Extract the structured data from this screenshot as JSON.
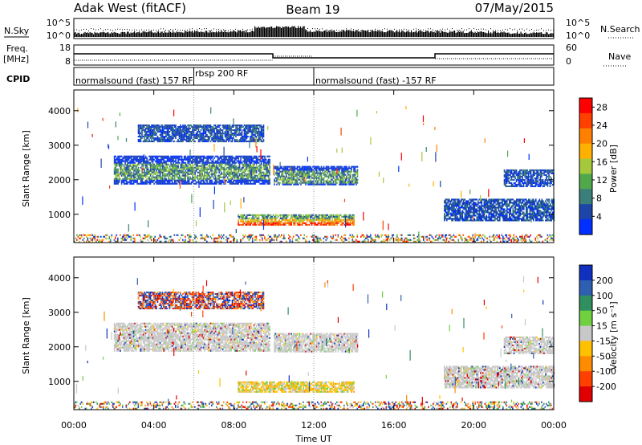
{
  "header": {
    "site": "Adak West (fitACF)",
    "beam": "Beam 19",
    "date": "07/May/2015"
  },
  "top_panels": {
    "nsky": {
      "label": "N.Sky",
      "left_ticks": [
        "10^5",
        "10^0"
      ],
      "right_ticks": [
        "10^5",
        "10^0"
      ],
      "right_label": "N.Search"
    },
    "freq": {
      "label_line1": "Freq.",
      "label_line2": "[MHz]",
      "left_ticks": [
        "18",
        "8"
      ],
      "right_ticks": [
        "60",
        "0"
      ],
      "right_label": "Nave"
    },
    "cpid": {
      "label": "CPID",
      "segments": [
        {
          "text": "normalsound (fast) 157 RF",
          "start_hour": 0
        },
        {
          "text": "rbsp 200 RF",
          "start_hour": 6
        },
        {
          "text": "normalsound (fast) -157 RF",
          "start_hour": 12
        }
      ],
      "boundaries_hour": [
        6,
        12
      ]
    }
  },
  "chart_data": [
    {
      "type": "heatmap",
      "name": "power",
      "ylabel": "Slant Range [km]",
      "xlabel": "",
      "xlim": [
        0,
        24
      ],
      "ylim": [
        180,
        4600
      ],
      "yticks": [
        1000,
        2000,
        3000,
        4000
      ],
      "colorbar": {
        "label": "Power [dB]",
        "ticks": [
          4,
          8,
          12,
          16,
          20,
          24,
          28
        ],
        "range": [
          0,
          30
        ],
        "colors": [
          "#0030ff",
          "#1d45a8",
          "#3a7f7a",
          "#50a84a",
          "#a5c83c",
          "#ffb000",
          "#ff8000",
          "#ff4000",
          "#ff0000"
        ]
      },
      "scatter_bands": [
        {
          "t0": 2.0,
          "t1": 9.8,
          "r0": 1900,
          "r1": 2700,
          "level": "mid"
        },
        {
          "t0": 3.2,
          "t1": 9.5,
          "r0": 3100,
          "r1": 3600,
          "level": "low"
        },
        {
          "t0": 8.2,
          "t1": 14.0,
          "r0": 680,
          "r1": 1000,
          "level": "high"
        },
        {
          "t0": 10.0,
          "t1": 14.2,
          "r0": 1850,
          "r1": 2400,
          "level": "mid"
        },
        {
          "t0": 18.5,
          "t1": 24.0,
          "r0": 800,
          "r1": 1450,
          "level": "low"
        },
        {
          "t0": 21.5,
          "t1": 24.0,
          "r0": 1800,
          "r1": 2300,
          "level": "low"
        },
        {
          "t0": 0.0,
          "t1": 24.0,
          "r0": 200,
          "r1": 420,
          "level": "noise"
        }
      ]
    },
    {
      "type": "heatmap",
      "name": "velocity",
      "ylabel": "Slant Range [km]",
      "xlabel": "Time UT",
      "xlim": [
        0,
        24
      ],
      "ylim": [
        180,
        4600
      ],
      "yticks": [
        1000,
        2000,
        3000,
        4000
      ],
      "xticks": [
        "00:00",
        "04:00",
        "08:00",
        "12:00",
        "16:00",
        "20:00",
        "00:00"
      ],
      "colorbar": {
        "label": "Velocity [m s⁻¹]",
        "ticks": [
          200,
          100,
          50,
          15,
          -15,
          -50,
          -100,
          -200
        ],
        "colors": [
          "#1030c0",
          "#2f5fb0",
          "#2f8f5f",
          "#70d040",
          "#c8c8c8",
          "#ffc000",
          "#ff8c00",
          "#ff4000",
          "#e00000"
        ]
      },
      "scatter_bands": [
        {
          "t0": 2.0,
          "t1": 9.8,
          "r0": 1900,
          "r1": 2700,
          "level": "gray"
        },
        {
          "t0": 3.2,
          "t1": 9.5,
          "r0": 3100,
          "r1": 3600,
          "level": "mixed"
        },
        {
          "t0": 8.2,
          "t1": 14.0,
          "r0": 680,
          "r1": 1000,
          "level": "orange"
        },
        {
          "t0": 10.0,
          "t1": 14.2,
          "r0": 1850,
          "r1": 2400,
          "level": "gray"
        },
        {
          "t0": 18.5,
          "t1": 24.0,
          "r0": 800,
          "r1": 1450,
          "level": "gray"
        },
        {
          "t0": 21.5,
          "t1": 24.0,
          "r0": 1800,
          "r1": 2300,
          "level": "gray"
        },
        {
          "t0": 0.0,
          "t1": 24.0,
          "r0": 200,
          "r1": 420,
          "level": "noise"
        }
      ]
    }
  ]
}
